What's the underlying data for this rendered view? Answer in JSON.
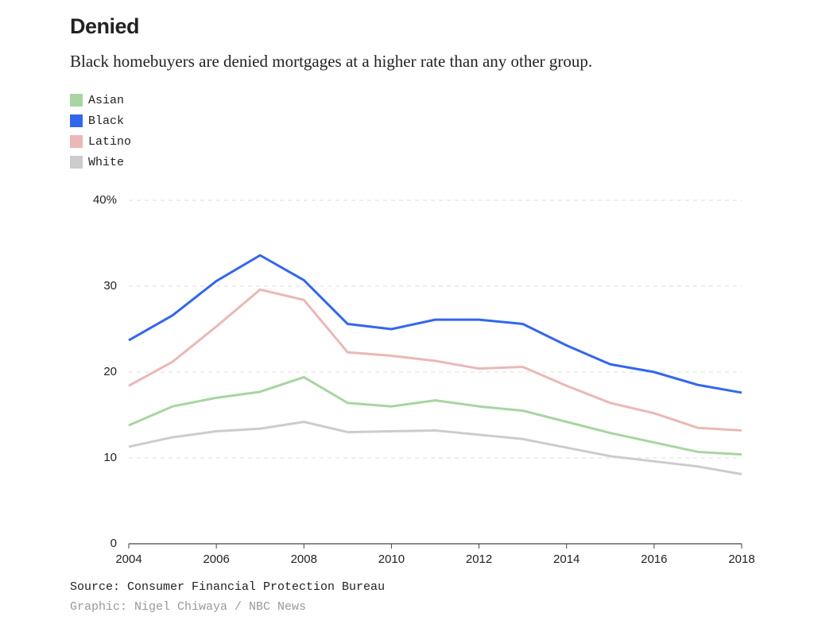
{
  "chart_data": {
    "type": "line",
    "title": "Denied",
    "subtitle": "Black homebuyers are denied mortgages at a higher rate than any other group.",
    "x": [
      2004,
      2005,
      2006,
      2007,
      2008,
      2009,
      2010,
      2011,
      2012,
      2013,
      2014,
      2015,
      2016,
      2017,
      2018
    ],
    "xlim": [
      2004,
      2018
    ],
    "xticks": [
      2004,
      2006,
      2008,
      2010,
      2012,
      2014,
      2016,
      2018
    ],
    "ylim": [
      0,
      40
    ],
    "yticks": [
      0,
      10,
      20,
      30,
      {
        "value": 40,
        "label": "40%"
      }
    ],
    "grid": true,
    "series": [
      {
        "name": "Asian",
        "color": "#a8d5a2",
        "values": [
          13.8,
          16.0,
          17.0,
          17.7,
          19.4,
          16.4,
          16.0,
          16.7,
          16.0,
          15.5,
          14.2,
          12.9,
          11.8,
          10.7,
          10.4
        ]
      },
      {
        "name": "Black",
        "color": "#3366ee",
        "values": [
          23.7,
          26.6,
          30.6,
          33.6,
          30.7,
          25.6,
          25.0,
          26.1,
          26.1,
          25.6,
          23.1,
          20.9,
          20.0,
          18.5,
          17.6
        ]
      },
      {
        "name": "Latino",
        "color": "#eab8b6",
        "values": [
          18.4,
          21.2,
          25.3,
          29.6,
          28.4,
          22.3,
          21.9,
          21.3,
          20.4,
          20.6,
          18.4,
          16.4,
          15.2,
          13.5,
          13.2
        ]
      },
      {
        "name": "White",
        "color": "#cccccc",
        "values": [
          11.3,
          12.4,
          13.1,
          13.4,
          14.2,
          13.0,
          13.1,
          13.2,
          12.7,
          12.2,
          11.2,
          10.2,
          9.6,
          9.0,
          8.1
        ]
      }
    ],
    "source": "Source: Consumer Financial Protection Bureau",
    "credit": "Graphic: Nigel Chiwaya / NBC News"
  }
}
